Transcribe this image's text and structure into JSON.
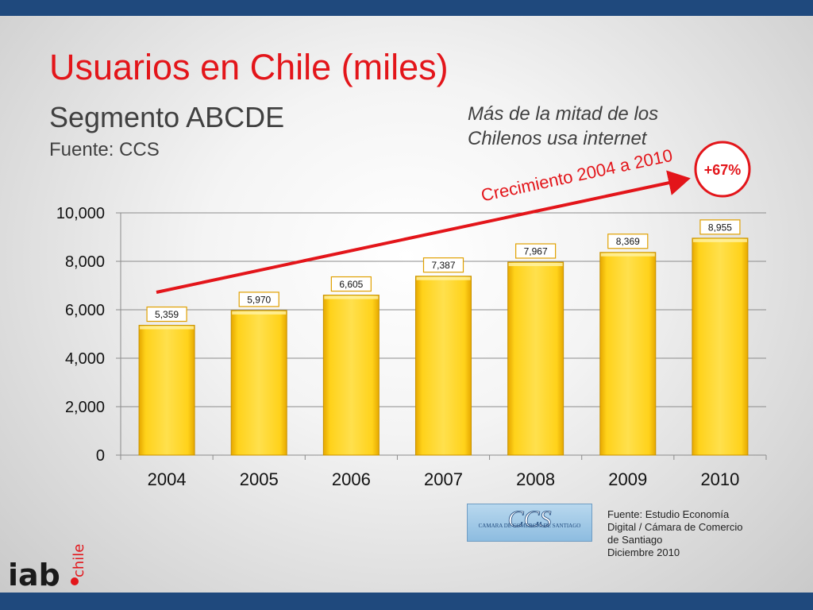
{
  "header": {
    "title": "Usuarios en Chile (miles)",
    "subtitle": "Segmento ABCDE",
    "source": "Fuente: CCS"
  },
  "note": {
    "line1": "Más de la mitad de los",
    "line2": "Chilenos usa internet"
  },
  "chart_data": {
    "type": "bar",
    "categories": [
      "2004",
      "2005",
      "2006",
      "2007",
      "2008",
      "2009",
      "2010"
    ],
    "values": [
      5359,
      5970,
      6605,
      7387,
      7967,
      8369,
      8955
    ],
    "data_labels": [
      "5,359",
      "5,970",
      "6,605",
      "7,387",
      "7,967",
      "8,369",
      "8,955"
    ],
    "y_ticks": [
      0,
      2000,
      4000,
      6000,
      8000,
      10000
    ],
    "y_tick_labels": [
      "0",
      "2,000",
      "4,000",
      "6,000",
      "8,000",
      "10,000"
    ],
    "ylim": [
      0,
      10000
    ],
    "grid": true,
    "bar_color": "#ffd000",
    "annotation": {
      "text": "Crecimiento 2004 a 2010",
      "badge": "+67%",
      "color": "#e3151a"
    }
  },
  "footnote": {
    "line1": "Fuente:  Estudio Economía",
    "line2": "Digital / Cámara de Comercio",
    "line3": "de Santiago",
    "line4": "Diciembre 2010"
  },
  "logos": {
    "ccs_mark": "CCS",
    "ccs_name": "CAMARA DE COMERCIO DE SANTIAGO",
    "iab_word": "iab",
    "iab_sub": "chile"
  }
}
